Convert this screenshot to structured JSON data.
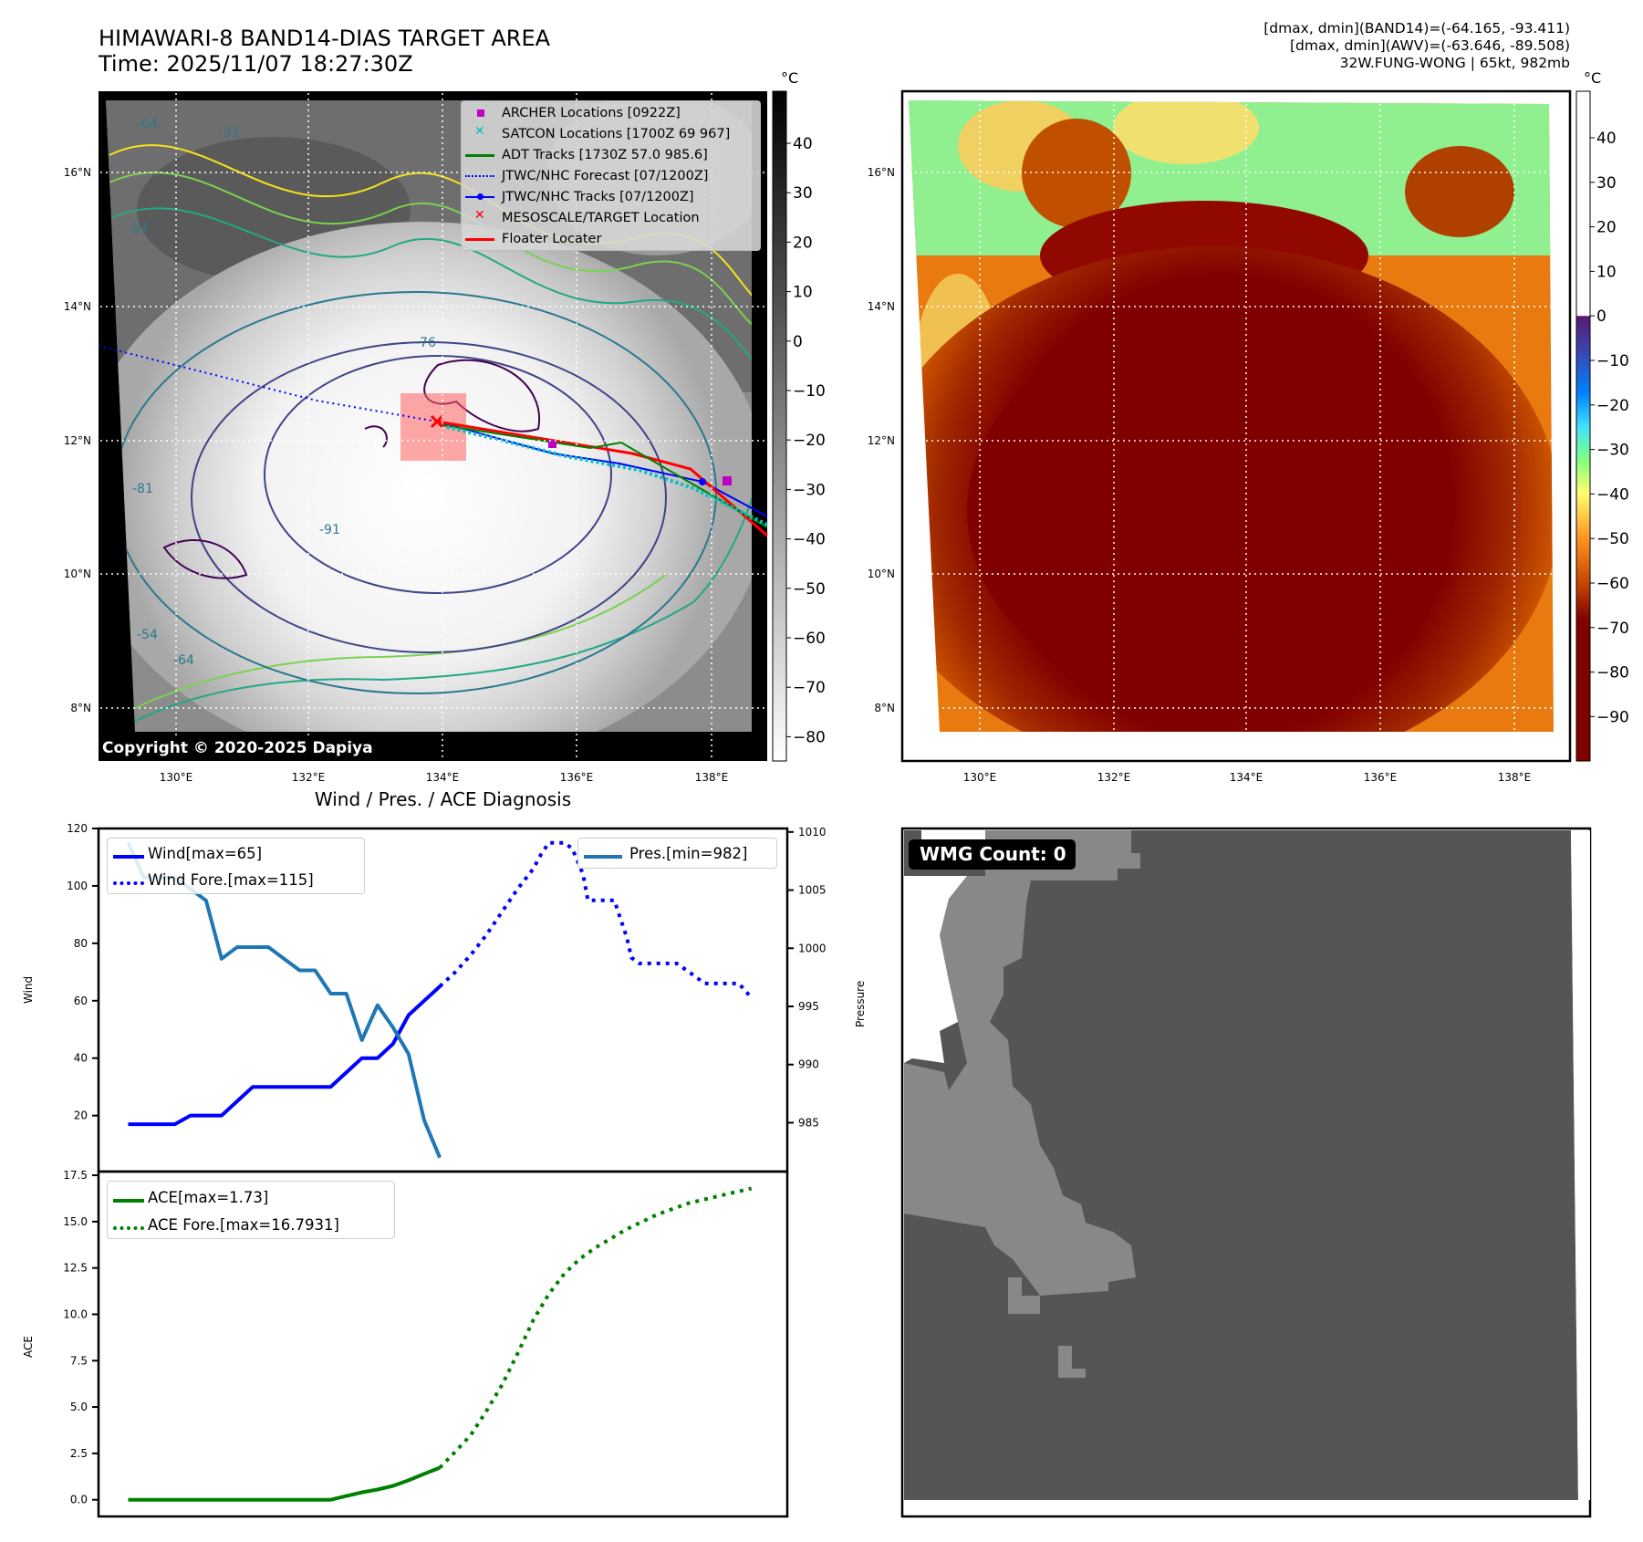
{
  "header": {
    "title_line1": "HIMAWARI-8 BAND14-DIAS TARGET AREA",
    "title_line2": "Time: 2025/11/07 18:27:30Z",
    "info_line1": "[dmax, dmin](BAND14)=(-64.165, -93.411)",
    "info_line2": "[dmax, dmin](AWV)=(-63.646, -89.508)",
    "info_line3": "32W.FUNG-WONG | 65kt, 982mb"
  },
  "map_left": {
    "unit": "°C",
    "lat_labels": [
      "16°N",
      "14°N",
      "12°N",
      "10°N",
      "8°N"
    ],
    "lon_labels": [
      "130°E",
      "132°E",
      "134°E",
      "136°E",
      "138°E"
    ],
    "colorbar_ticks": [
      "40",
      "30",
      "20",
      "10",
      "0",
      "−10",
      "−20",
      "−30",
      "−40",
      "−50",
      "−60",
      "−70",
      "−80"
    ],
    "copyright": "Copyright © 2020-2025 Dapiya",
    "contour_labels": [
      "-64",
      "-54",
      "-31",
      "-81",
      "-76",
      "-91",
      "-64",
      "-54"
    ],
    "legend": [
      {
        "label": "ARCHER Locations [0922Z]",
        "color": "#c000c0",
        "symbol": "square"
      },
      {
        "label": "SATCON Locations [1700Z 69 967]",
        "color": "#00c0c0",
        "symbol": "x"
      },
      {
        "label": "ADT Tracks [1730Z 57.0 985.6]",
        "color": "#008000",
        "symbol": "line"
      },
      {
        "label": "JTWC/NHC Forecast [07/1200Z]",
        "color": "#0000ff",
        "symbol": "dotted"
      },
      {
        "label": "JTWC/NHC Tracks [07/1200Z]",
        "color": "#0000ff",
        "symbol": "line-dot"
      },
      {
        "label": "MESOSCALE/TARGET Location",
        "color": "#ff0000",
        "symbol": "x"
      },
      {
        "label": "Floater Locater",
        "color": "#ff0000",
        "symbol": "line"
      }
    ]
  },
  "map_right": {
    "unit": "°C",
    "lat_labels": [
      "16°N",
      "14°N",
      "12°N",
      "10°N",
      "8°N"
    ],
    "lon_labels": [
      "130°E",
      "132°E",
      "134°E",
      "136°E",
      "138°E"
    ],
    "colorbar_ticks": [
      "40",
      "30",
      "20",
      "10",
      "0",
      "−10",
      "−20",
      "−30",
      "−40",
      "−50",
      "−60",
      "−70",
      "−80",
      "−90"
    ]
  },
  "wmg_panel": {
    "label": "WMG Count: 0"
  },
  "chart_data": [
    {
      "type": "line",
      "title": "Wind / Pres. / ACE Diagnosis",
      "ylabel": "Wind",
      "ylabel_right": "Pressure",
      "ylim": [
        0.5,
        120
      ],
      "ylim_right": [
        980.8,
        1010.3
      ],
      "xlim": [
        -1.9,
        42.3
      ],
      "yticks": [
        20,
        40,
        60,
        80,
        100,
        120
      ],
      "yticks_right": [
        985,
        990,
        995,
        1000,
        1005,
        1010
      ],
      "series": [
        {
          "name": "Wind[max=65]",
          "color": "#0000ff",
          "style": "solid",
          "x": [
            0,
            1,
            2,
            3,
            4,
            5,
            6,
            7,
            8,
            9,
            10,
            11,
            12,
            13,
            14,
            15,
            16,
            17,
            18,
            19,
            20
          ],
          "y": [
            17,
            17,
            17,
            17,
            20,
            20,
            20,
            25,
            30,
            30,
            30,
            30,
            30,
            30,
            35,
            40,
            40,
            45,
            55,
            60,
            65
          ]
        },
        {
          "name": "Wind Fore.[max=115]",
          "color": "#0000ff",
          "style": "dotted",
          "x": [
            20,
            21,
            22,
            23,
            24,
            25,
            26,
            26.5,
            27,
            28,
            28.5,
            29.2,
            29.5,
            31.2,
            32,
            32.3,
            32.8,
            35.2,
            36,
            37,
            39.2,
            40
          ],
          "y": [
            65,
            70,
            76,
            83,
            91,
            99,
            106,
            111,
            115,
            115,
            113,
            104,
            95,
            95,
            82,
            75,
            73,
            73,
            70,
            66,
            66,
            61
          ]
        },
        {
          "name": "Pres.[min=982]",
          "color": "#1f77b4",
          "style": "solid",
          "axis": "right",
          "x": [
            0,
            1,
            2,
            3,
            5,
            6,
            7,
            9,
            11,
            12,
            13,
            14,
            15,
            16,
            17,
            18,
            19,
            20
          ],
          "y": [
            1009.1,
            1006.1,
            1006.1,
            1006.1,
            1004.1,
            999.1,
            1000.1,
            1000.1,
            998.1,
            998.1,
            996.1,
            996.1,
            992.1,
            995.1,
            993.2,
            990.9,
            985.2,
            982
          ]
        }
      ]
    },
    {
      "type": "line",
      "ylabel": "ACE",
      "ylim": [
        -0.9,
        17.7
      ],
      "xlim": [
        -1.9,
        42.3
      ],
      "yticks": [
        0.0,
        2.5,
        5.0,
        7.5,
        10.0,
        12.5,
        15.0,
        17.5
      ],
      "series": [
        {
          "name": "ACE[max=1.73]",
          "color": "#008000",
          "style": "solid",
          "x": [
            0,
            13,
            14,
            15,
            16,
            17,
            18,
            19,
            20
          ],
          "y": [
            0,
            0,
            0.2,
            0.4,
            0.55,
            0.75,
            1.05,
            1.4,
            1.73
          ]
        },
        {
          "name": "ACE Fore.[max=16.7931]",
          "color": "#008000",
          "style": "dotted",
          "x": [
            20,
            21,
            22,
            23,
            24,
            25,
            26,
            27,
            28,
            29,
            30,
            31,
            32,
            33,
            34,
            35,
            36,
            37,
            38,
            39,
            40
          ],
          "y": [
            1.73,
            2.6,
            3.5,
            4.8,
            6.2,
            7.9,
            9.7,
            11.1,
            12.2,
            13.0,
            13.6,
            14.1,
            14.6,
            15.0,
            15.4,
            15.7,
            16.0,
            16.2,
            16.4,
            16.6,
            16.79
          ]
        }
      ]
    }
  ]
}
